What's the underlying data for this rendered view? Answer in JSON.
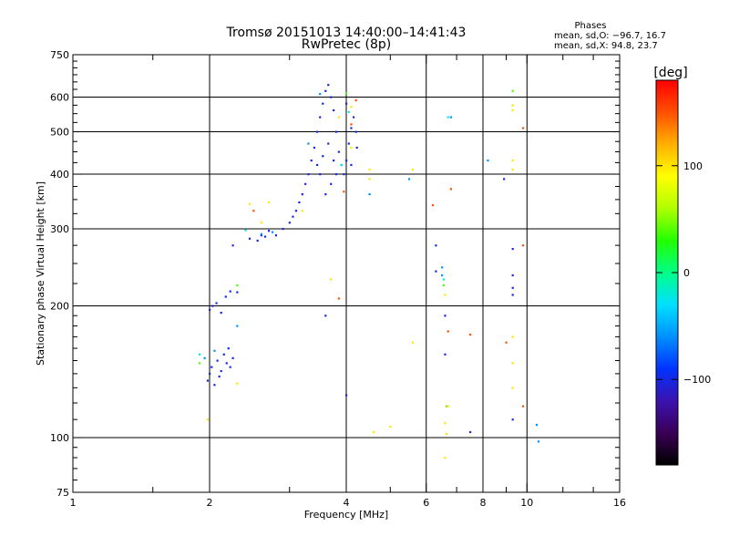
{
  "chart_data": {
    "type": "scatter",
    "title": "Tromsø 20151013 14:40:00–14:41:43",
    "subtitle": "RwPretec (8p)",
    "phases": {
      "heading": "Phases",
      "line_o": "mean, sd,O: −96.7, 16.7",
      "line_x": "mean, sd,X:  94.8, 23.7"
    },
    "xlabel": "Frequency [MHz]",
    "ylabel": "Stationary phase Virtual Height [km]",
    "xscale": "log2",
    "yscale": "log",
    "xlim": [
      1,
      16
    ],
    "ylim": [
      75,
      750
    ],
    "xticks": [
      {
        "value": 1,
        "label": "1"
      },
      {
        "value": 2,
        "label": "2"
      },
      {
        "value": 4,
        "label": "4"
      },
      {
        "value": 6,
        "label": "6"
      },
      {
        "value": 8,
        "label": "8"
      },
      {
        "value": 10,
        "label": "10"
      },
      {
        "value": 16,
        "label": "16"
      }
    ],
    "xgrid": [
      2,
      4,
      6,
      8,
      10
    ],
    "yticks": [
      {
        "value": 75,
        "label": "75"
      },
      {
        "value": 100,
        "label": "100"
      },
      {
        "value": 200,
        "label": "200"
      },
      {
        "value": 300,
        "label": "300"
      },
      {
        "value": 400,
        "label": "400"
      },
      {
        "value": 500,
        "label": "500"
      },
      {
        "value": 600,
        "label": "600"
      },
      {
        "value": 750,
        "label": "750"
      }
    ],
    "ygrid": [
      100,
      200,
      300,
      400,
      500,
      600
    ],
    "colorbar": {
      "label": "[deg]",
      "range": [
        -180,
        180
      ],
      "ticks": [
        {
          "value": 100,
          "label": "100"
        },
        {
          "value": 0,
          "label": "0"
        },
        {
          "value": -100,
          "label": "−100"
        }
      ],
      "colors": [
        "#000000",
        "#3a0055",
        "#3b12b0",
        "#0033ff",
        "#0090ff",
        "#00e0ff",
        "#00ff88",
        "#22ff00",
        "#b0ff00",
        "#ffff00",
        "#ffb000",
        "#ff5000",
        "#ff0000"
      ]
    },
    "series": [
      {
        "phase": -100,
        "points": [
          [
            1.98,
            135
          ],
          [
            2.0,
            140
          ],
          [
            2.02,
            145
          ],
          [
            2.05,
            132
          ],
          [
            2.08,
            150
          ],
          [
            2.1,
            138
          ],
          [
            2.12,
            142
          ],
          [
            2.15,
            155
          ],
          [
            2.18,
            148
          ],
          [
            2.2,
            160
          ],
          [
            2.22,
            145
          ],
          [
            2.25,
            152
          ],
          [
            2.0,
            196
          ],
          [
            2.03,
            200
          ],
          [
            2.07,
            203
          ],
          [
            2.12,
            193
          ],
          [
            2.17,
            210
          ],
          [
            2.22,
            216
          ],
          [
            2.3,
            215
          ],
          [
            2.25,
            275
          ],
          [
            2.45,
            285
          ],
          [
            2.55,
            282
          ],
          [
            2.6,
            290
          ],
          [
            2.65,
            288
          ],
          [
            2.7,
            297
          ],
          [
            2.8,
            290
          ],
          [
            2.9,
            300
          ],
          [
            3.0,
            310
          ],
          [
            3.05,
            320
          ],
          [
            3.1,
            330
          ],
          [
            3.15,
            345
          ],
          [
            3.2,
            360
          ],
          [
            3.25,
            380
          ],
          [
            3.3,
            400
          ],
          [
            3.35,
            430
          ],
          [
            3.4,
            460
          ],
          [
            3.45,
            500
          ],
          [
            3.5,
            540
          ],
          [
            3.55,
            580
          ],
          [
            3.6,
            620
          ],
          [
            3.65,
            640
          ],
          [
            3.7,
            600
          ],
          [
            3.75,
            560
          ],
          [
            3.8,
            500
          ],
          [
            3.85,
            450
          ],
          [
            3.9,
            420
          ],
          [
            3.95,
            400
          ],
          [
            4.0,
            430
          ],
          [
            4.05,
            470
          ],
          [
            4.1,
            510
          ],
          [
            4.15,
            540
          ],
          [
            4.2,
            500
          ],
          [
            4.22,
            460
          ],
          [
            4.0,
            580
          ],
          [
            3.5,
            400
          ],
          [
            3.6,
            360
          ],
          [
            3.7,
            380
          ],
          [
            3.55,
            440
          ],
          [
            3.45,
            420
          ],
          [
            3.65,
            470
          ],
          [
            3.75,
            430
          ],
          [
            3.8,
            400
          ],
          [
            4.1,
            420
          ],
          [
            3.6,
            190
          ],
          [
            4.0,
            125
          ],
          [
            6.3,
            240
          ],
          [
            6.3,
            275
          ],
          [
            6.6,
            190
          ],
          [
            6.6,
            155
          ],
          [
            7.5,
            103
          ],
          [
            8.9,
            390
          ],
          [
            9.3,
            270
          ],
          [
            9.3,
            235
          ],
          [
            9.3,
            220
          ],
          [
            9.3,
            212
          ],
          [
            9.3,
            110
          ]
        ]
      },
      {
        "phase": -60,
        "points": [
          [
            1.95,
            152
          ],
          [
            2.05,
            158
          ],
          [
            2.3,
            180
          ],
          [
            2.6,
            292
          ],
          [
            2.75,
            295
          ],
          [
            3.3,
            470
          ],
          [
            3.5,
            610
          ],
          [
            4.5,
            360
          ],
          [
            5.5,
            390
          ],
          [
            6.5,
            245
          ],
          [
            6.5,
            235
          ],
          [
            6.8,
            540
          ],
          [
            8.2,
            430
          ],
          [
            10.5,
            107
          ],
          [
            10.6,
            98
          ]
        ]
      },
      {
        "phase": -20,
        "points": [
          [
            1.9,
            155
          ],
          [
            2.4,
            298
          ],
          [
            3.9,
            420
          ],
          [
            4.05,
            555
          ],
          [
            6.55,
            230
          ],
          [
            6.7,
            540
          ]
        ]
      },
      {
        "phase": 40,
        "points": [
          [
            1.9,
            148
          ],
          [
            2.3,
            223
          ],
          [
            6.55,
            223
          ],
          [
            6.65,
            118
          ],
          [
            9.3,
            620
          ],
          [
            4.0,
            612
          ]
        ]
      },
      {
        "phase": 100,
        "points": [
          [
            1.98,
            110
          ],
          [
            2.3,
            133
          ],
          [
            2.6,
            310
          ],
          [
            2.7,
            345
          ],
          [
            3.2,
            330
          ],
          [
            3.85,
            540
          ],
          [
            4.1,
            570
          ],
          [
            4.5,
            410
          ],
          [
            4.5,
            390
          ],
          [
            4.6,
            103
          ],
          [
            5.0,
            106
          ],
          [
            5.6,
            410
          ],
          [
            5.6,
            165
          ],
          [
            6.6,
            212
          ],
          [
            6.7,
            118
          ],
          [
            6.6,
            108
          ],
          [
            6.6,
            90
          ],
          [
            6.65,
            102
          ],
          [
            9.3,
            575
          ],
          [
            9.3,
            560
          ],
          [
            9.3,
            430
          ],
          [
            9.3,
            410
          ],
          [
            9.3,
            148
          ],
          [
            9.3,
            130
          ],
          [
            9.3,
            170
          ],
          [
            2.45,
            342
          ],
          [
            3.7,
            230
          ],
          [
            4.1,
            460
          ]
        ]
      },
      {
        "phase": 150,
        "points": [
          [
            2.5,
            330
          ],
          [
            3.85,
            208
          ],
          [
            4.2,
            590
          ],
          [
            6.7,
            175
          ],
          [
            7.5,
            172
          ],
          [
            9.0,
            165
          ],
          [
            9.8,
            118
          ],
          [
            9.8,
            510
          ],
          [
            4.1,
            520
          ],
          [
            6.2,
            340
          ],
          [
            6.8,
            370
          ],
          [
            3.95,
            365
          ],
          [
            9.8,
            275
          ]
        ]
      }
    ]
  }
}
